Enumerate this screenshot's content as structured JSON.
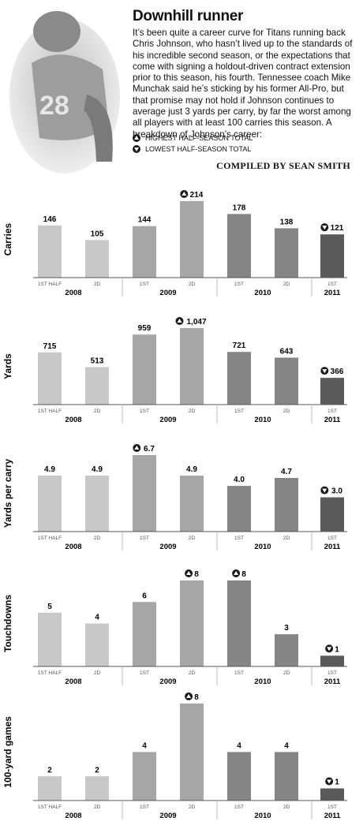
{
  "header": {
    "title": "Downhill runner",
    "intro": "It’s been quite a career curve for Titans running back Chris Johnson, who hasn’t lived up to the standards of his incredible second season, or the expectations that come with signing a holdout-driven contract extension prior to this season, his fourth. Tennessee coach Mike Munchak said he’s sticking by his former All-Pro, but that promise may not hold if Johnson continues to average just 3 yards per carry, by far the worst among all players with at least 100 carries this season. A breakdown of Johnson’s career:",
    "legend_high": "HIGHEST HALF-SEASON TOTAL",
    "legend_low": "LOWEST HALF-SEASON TOTAL",
    "credit": "COMPILED BY SEAN SMITH"
  },
  "colors": {
    "y2008": "#c8c8c8",
    "y2009": "#a6a6a6",
    "y2010": "#858585",
    "y2011": "#5a5a5a",
    "marker": "#1a1a1a",
    "axis": "#555555",
    "photo": "#cfcfcf"
  },
  "categories": [
    "1ST HALF",
    "2D",
    "1ST",
    "2D",
    "1ST",
    "2D",
    "1ST"
  ],
  "years": [
    "2008",
    "2009",
    "2010",
    "2011"
  ],
  "chart_data": [
    {
      "type": "bar",
      "ylabel": "Carries",
      "values": [
        146,
        105,
        144,
        214,
        178,
        138,
        121
      ],
      "labels": [
        "146",
        "105",
        "144",
        "214",
        "178",
        "138",
        "121"
      ],
      "markers": [
        "",
        "",
        "",
        "high",
        "",
        "",
        "low"
      ],
      "ylim": [
        0,
        214
      ]
    },
    {
      "type": "bar",
      "ylabel": "Yards",
      "values": [
        715,
        513,
        959,
        1047,
        721,
        643,
        366
      ],
      "labels": [
        "715",
        "513",
        "959",
        "1,047",
        "721",
        "643",
        "366"
      ],
      "markers": [
        "",
        "",
        "",
        "high",
        "",
        "",
        "low"
      ],
      "ylim": [
        0,
        1047
      ]
    },
    {
      "type": "bar",
      "ylabel": "Yards per carry",
      "values": [
        4.9,
        4.9,
        6.7,
        4.9,
        4.0,
        4.7,
        3.0
      ],
      "labels": [
        "4.9",
        "4.9",
        "6.7",
        "4.9",
        "4.0",
        "4.7",
        "3.0"
      ],
      "markers": [
        "",
        "",
        "high",
        "",
        "",
        "",
        "low"
      ],
      "ylim": [
        0,
        6.7
      ]
    },
    {
      "type": "bar",
      "ylabel": "Touchdowns",
      "values": [
        5,
        4,
        6,
        8,
        8,
        3,
        1
      ],
      "labels": [
        "5",
        "4",
        "6",
        "8",
        "8",
        "3",
        "1"
      ],
      "markers": [
        "",
        "",
        "",
        "high",
        "high",
        "",
        "low"
      ],
      "ylim": [
        0,
        8
      ]
    },
    {
      "type": "bar",
      "ylabel": "100-yard games",
      "values": [
        2,
        2,
        4,
        8,
        4,
        4,
        1
      ],
      "labels": [
        "2",
        "2",
        "4",
        "8",
        "4",
        "4",
        "1"
      ],
      "markers": [
        "",
        "",
        "",
        "high",
        "",
        "",
        "low"
      ],
      "ylim": [
        0,
        8
      ]
    }
  ]
}
